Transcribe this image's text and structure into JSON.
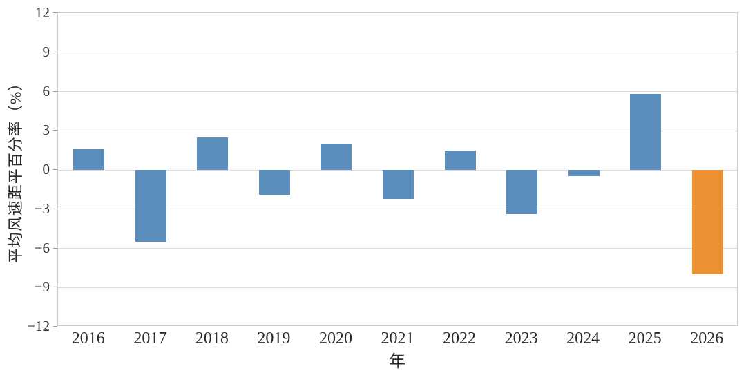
{
  "chart_data": {
    "type": "bar",
    "categories": [
      "2016",
      "2017",
      "2018",
      "2019",
      "2020",
      "2021",
      "2022",
      "2023",
      "2024",
      "2025",
      "2026"
    ],
    "values": [
      1.6,
      -5.5,
      2.5,
      -1.9,
      2.0,
      -2.2,
      1.5,
      -3.4,
      -0.5,
      5.8,
      -8.0
    ],
    "bar_colors": [
      "#5A8DBB",
      "#5A8DBB",
      "#5A8DBB",
      "#5A8DBB",
      "#5A8DBB",
      "#5A8DBB",
      "#5A8DBB",
      "#5A8DBB",
      "#5A8DBB",
      "#5A8DBB",
      "#EB9134"
    ],
    "title": "",
    "xlabel": "年",
    "ylabel": "平均风速距平百分率（%）",
    "ylim": [
      -12,
      12
    ],
    "yticks": [
      -12,
      -9,
      -6,
      -3,
      0,
      3,
      6,
      9,
      12
    ],
    "grid": true,
    "legend": false,
    "colors": {
      "bar_default": "#5A8DBB",
      "bar_highlight": "#EB9134",
      "gridline": "#DCDCDC",
      "axis_frame": "#CCCCCC",
      "tick_mark": "#9A9A9A",
      "text": "#2B2B2B",
      "background": "#FFFFFF"
    }
  }
}
